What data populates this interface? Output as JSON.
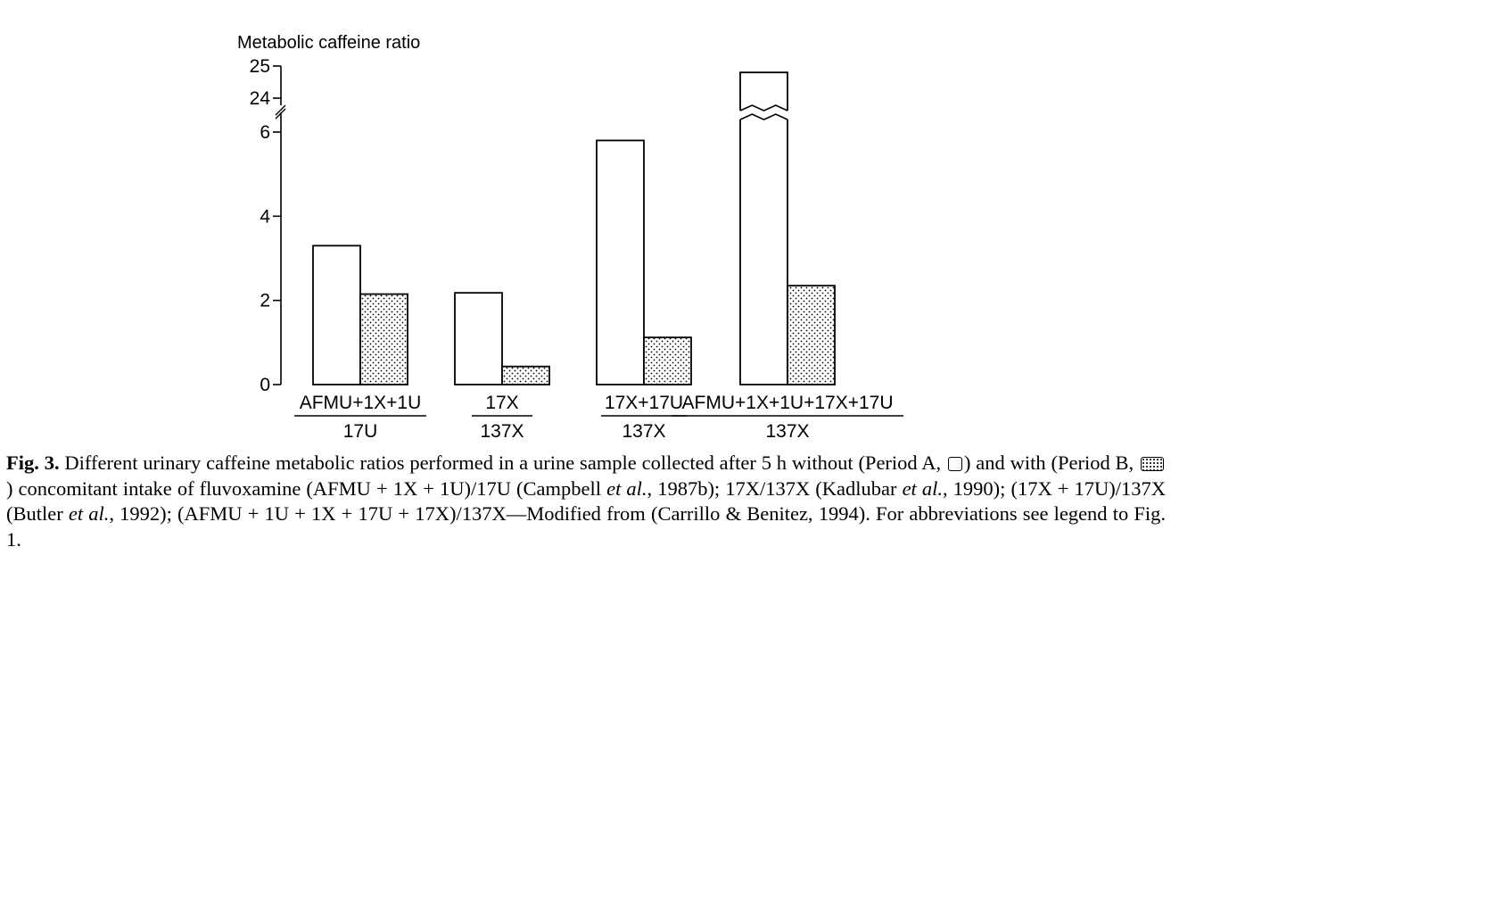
{
  "chart_data": {
    "type": "bar",
    "ylabel": "Metabolic caffeine ratio",
    "y_ticks_lower": [
      "0",
      "2",
      "4",
      "6"
    ],
    "y_ticks_upper": [
      "24",
      "25"
    ],
    "ylim_lower": [
      0,
      6
    ],
    "ylim_upper": [
      24,
      25
    ],
    "axis_break": true,
    "categories": [
      {
        "numerator": "AFMU+1X+1U",
        "denominator": "17U"
      },
      {
        "numerator": "17X",
        "denominator": "137X"
      },
      {
        "numerator": "17X+17U",
        "denominator": "137X"
      },
      {
        "numerator": "AFMU+1X+1U+17X+17U",
        "denominator": "137X"
      }
    ],
    "series": [
      {
        "name": "Period A",
        "fill": "white",
        "values": [
          3.3,
          2.18,
          5.8,
          24.8
        ]
      },
      {
        "name": "Period B",
        "fill": "dotted",
        "values": [
          2.15,
          0.43,
          1.12,
          2.35
        ]
      }
    ],
    "broken_bar": {
      "series": 0,
      "category": 3
    }
  },
  "caption": {
    "label": "Fig. 3.",
    "part1": " Different urinary caffeine metabolic ratios performed in a urine sample collected after 5 h without (Period A, ",
    "part2": ") and with (Period B, ",
    "part3": ") concomitant intake of fluvoxamine (AFMU + 1X + 1U)/17U (Campbell ",
    "etal1": "et al.",
    "part4": ", 1987b); 17X/137X (Kadlubar ",
    "etal2": "et al.",
    "part5": ", 1990); (17X + 17U)/137X (Butler ",
    "etal3": "et al.",
    "part6": ", 1992); (AFMU + 1U + 1X + 17U + 17X)/137X—Modified from (Carrillo & Benitez, 1994). For abbreviations see legend to Fig. 1."
  }
}
